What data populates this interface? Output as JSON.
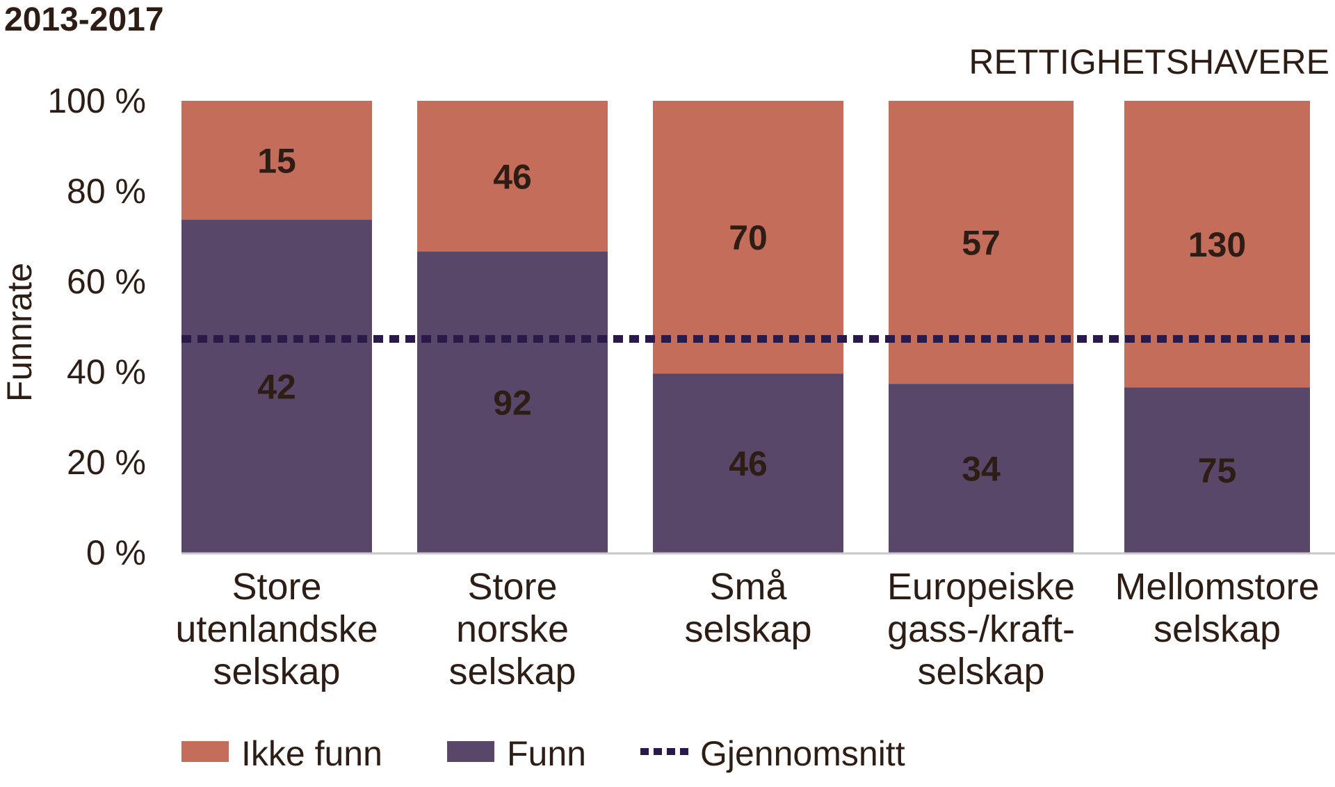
{
  "chart_data": {
    "type": "bar",
    "stacked": "percent",
    "title": "2013-2017",
    "subtitle": "RETTIGHETSHAVERE",
    "xlabel": "",
    "ylabel": "Funnrate",
    "ylim": [
      0,
      100
    ],
    "y_ticks": [
      "0 %",
      "20 %",
      "40 %",
      "60 %",
      "80 %",
      "100 %"
    ],
    "y_tick_values": [
      0,
      20,
      40,
      60,
      80,
      100
    ],
    "grid": false,
    "legend_position": "bottom",
    "categories": [
      [
        "Store",
        "utenlandske",
        "selskap"
      ],
      [
        "Store",
        "norske",
        "selskap"
      ],
      [
        "Små",
        "selskap"
      ],
      [
        "Europeiske",
        "gass-/kraft-",
        "selskap"
      ],
      [
        "Mellomstore",
        "selskap"
      ]
    ],
    "series": [
      {
        "name": "Funn",
        "color": "#584769",
        "values": [
          42,
          92,
          46,
          34,
          75
        ]
      },
      {
        "name": "Ikke funn",
        "color": "#c56d5b",
        "values": [
          15,
          46,
          70,
          57,
          130
        ]
      }
    ],
    "average": {
      "name": "Gjennomsnitt",
      "value": 47.3,
      "color": "#2a1a4a"
    },
    "legend": [
      "Ikke funn",
      "Funn",
      "Gjennomsnitt"
    ],
    "colors": {
      "text": "#2d1d14",
      "axis": "#c8c8c8"
    }
  }
}
